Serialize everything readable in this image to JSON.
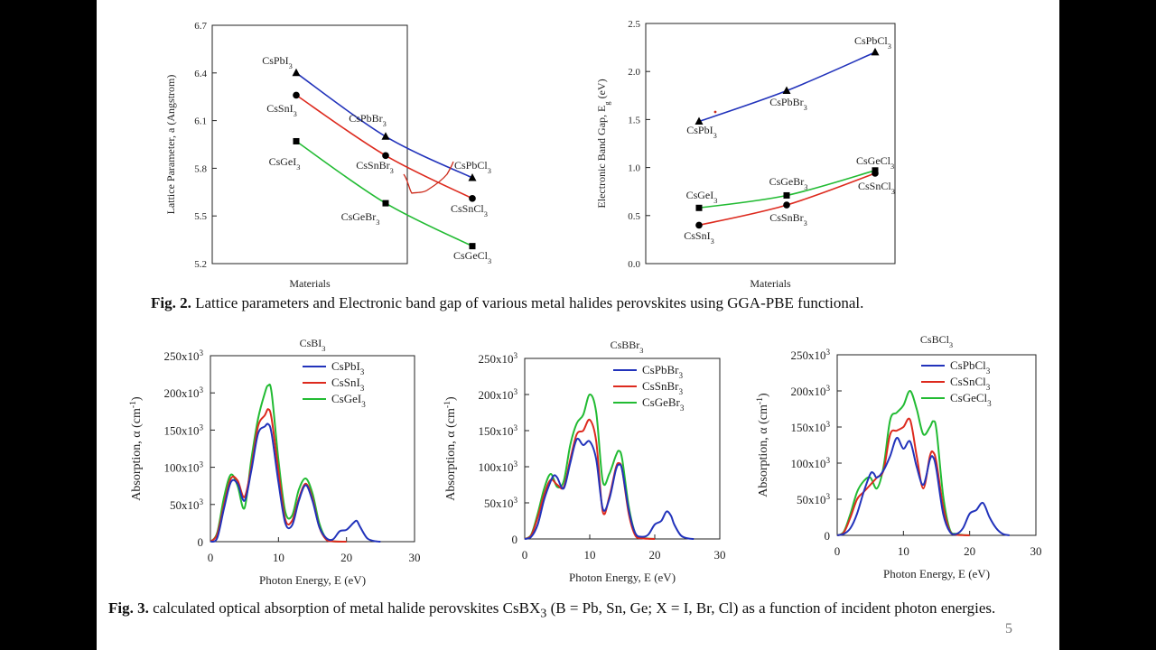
{
  "fig2_caption": {
    "label": "Fig. 2.",
    "text": " Lattice parameters and Electronic band gap of various metal halides perovskites using GGA-PBE functional."
  },
  "fig3_caption": {
    "label": "Fig. 3.",
    "text_before": " calculated optical absorption of metal halide perovskites CsBX",
    "sub": "3",
    "text_after": " (B = Pb, Sn, Ge; X = I, Br, Cl) as a function of incident photon energies."
  },
  "page_number": "5",
  "colors": {
    "pb": "#2233bb",
    "sn": "#dd2a1e",
    "ge": "#22bb33",
    "axis": "#222222"
  },
  "chart_data": [
    {
      "id": "lattice",
      "type": "line",
      "xlabel": "Materials",
      "ylabel": "Lattice Parameter, a (Angstrom)",
      "ylim": [
        5.2,
        6.7
      ],
      "yticks": [
        "5.2",
        "5.5",
        "5.8",
        "6.1",
        "6.4",
        "6.7"
      ],
      "series": [
        {
          "key": "pb",
          "marker": "triangle",
          "points": [
            {
              "x": 1,
              "y": 6.4,
              "label": "CsPbI",
              "sub": "3"
            },
            {
              "x": 2,
              "y": 6.0,
              "label": "CsPbBr",
              "sub": "3"
            },
            {
              "x": 3,
              "y": 5.74,
              "label": "CsPbCl",
              "sub": "3"
            }
          ]
        },
        {
          "key": "sn",
          "marker": "circle",
          "points": [
            {
              "x": 1,
              "y": 6.26,
              "label": "CsSnI",
              "sub": "3"
            },
            {
              "x": 2,
              "y": 5.88,
              "label": "CsSnBr",
              "sub": "3"
            },
            {
              "x": 3,
              "y": 5.61,
              "label": "CsSnCl",
              "sub": "3"
            }
          ]
        },
        {
          "key": "ge",
          "marker": "square",
          "points": [
            {
              "x": 1,
              "y": 5.97,
              "label": "CsGeI",
              "sub": "3"
            },
            {
              "x": 2,
              "y": 5.58,
              "label": "CsGeBr",
              "sub": "3"
            },
            {
              "x": 3,
              "y": 5.31,
              "label": "CsGeCl",
              "sub": "3"
            }
          ]
        }
      ]
    },
    {
      "id": "bandgap",
      "type": "line",
      "xlabel": "Materials",
      "ylabel": "Electronic Band Gap, E",
      "ylabel_sub": "g",
      "ylabel_unit": " (eV)",
      "ylim": [
        0,
        2.5
      ],
      "yticks": [
        "0.0",
        "0.5",
        "1.0",
        "1.5",
        "2.0",
        "2.5"
      ],
      "series": [
        {
          "key": "pb",
          "marker": "triangle",
          "points": [
            {
              "x": 1,
              "y": 1.48,
              "label": "CsPbI",
              "sub": "3"
            },
            {
              "x": 2,
              "y": 1.8,
              "label": "CsPbBr",
              "sub": "3"
            },
            {
              "x": 3,
              "y": 2.2,
              "label": "CsPbCl",
              "sub": "3"
            }
          ]
        },
        {
          "key": "ge",
          "marker": "square",
          "points": [
            {
              "x": 1,
              "y": 0.58,
              "label": "CsGeI",
              "sub": "3"
            },
            {
              "x": 2,
              "y": 0.71,
              "label": "CsGeBr",
              "sub": "3"
            },
            {
              "x": 3,
              "y": 0.97,
              "label": "CsGeCl",
              "sub": "3"
            }
          ]
        },
        {
          "key": "sn",
          "marker": "circle",
          "points": [
            {
              "x": 1,
              "y": 0.4,
              "label": "CsSnI",
              "sub": "3"
            },
            {
              "x": 2,
              "y": 0.61,
              "label": "CsSnBr",
              "sub": "3"
            },
            {
              "x": 3,
              "y": 0.94,
              "label": "CsSnCl",
              "sub": "3"
            }
          ]
        }
      ]
    },
    {
      "id": "abs_i",
      "type": "line",
      "title": "CsBI",
      "title_sub": "3",
      "xlabel": "Photon Energy, E (eV)",
      "ylabel": "Absorption, α (cm",
      "ylabel_sup": "-1",
      "ylabel_end": ")",
      "xlim": [
        0,
        30
      ],
      "ylim": [
        0,
        250000
      ],
      "xticks": [
        "0",
        "10",
        "20",
        "30"
      ],
      "yticks": [
        "0",
        "50x10",
        "100x10",
        "150x10",
        "200x10",
        "250x10"
      ],
      "ytick_sup": "3",
      "series": [
        {
          "key": "pb",
          "name": "CsPbI",
          "sub": "3",
          "x": [
            0,
            1,
            2,
            3,
            4,
            5,
            6,
            7,
            8,
            8.5,
            9,
            10,
            11,
            12,
            13,
            14,
            15,
            16,
            17,
            18,
            19,
            20,
            21,
            21.5,
            22,
            23,
            24,
            25
          ],
          "y": [
            0,
            5000,
            45000,
            80000,
            78000,
            55000,
            95000,
            145000,
            155000,
            158000,
            145000,
            80000,
            25000,
            22000,
            55000,
            76000,
            55000,
            20000,
            5000,
            3000,
            14000,
            16000,
            25000,
            28000,
            20000,
            5000,
            1000,
            0
          ]
        },
        {
          "key": "sn",
          "name": "CsSnI",
          "sub": "3",
          "x": [
            0,
            1,
            2,
            3,
            4,
            5,
            6,
            7,
            8,
            8.5,
            9,
            10,
            11,
            12,
            13,
            14,
            15,
            16,
            17,
            18,
            20
          ],
          "y": [
            0,
            10000,
            50000,
            85000,
            82000,
            60000,
            100000,
            155000,
            170000,
            178000,
            165000,
            95000,
            30000,
            28000,
            58000,
            78000,
            58000,
            20000,
            3000,
            500,
            0
          ]
        },
        {
          "key": "ge",
          "name": "CsGeI",
          "sub": "3",
          "x": [
            0,
            1,
            2,
            3,
            4,
            5,
            6,
            7,
            8,
            8.5,
            9,
            10,
            11,
            12,
            13,
            14,
            15,
            16,
            17,
            18,
            20
          ],
          "y": [
            0,
            12000,
            60000,
            90000,
            75000,
            45000,
            110000,
            165000,
            200000,
            210000,
            200000,
            110000,
            40000,
            35000,
            70000,
            85000,
            65000,
            25000,
            4000,
            500,
            0
          ]
        }
      ]
    },
    {
      "id": "abs_br",
      "type": "line",
      "title": "CsBBr",
      "title_sub": "3",
      "xlabel": "Photon Energy, E (eV)",
      "ylabel": "Absorption, α (cm",
      "ylabel_sup": "-1",
      "ylabel_end": ")",
      "xlim": [
        0,
        30
      ],
      "ylim": [
        0,
        250000
      ],
      "xticks": [
        "0",
        "10",
        "20",
        "30"
      ],
      "yticks": [
        "0",
        "50x10",
        "100x10",
        "150x10",
        "200x10",
        "250x10"
      ],
      "ytick_sup": "3",
      "series": [
        {
          "key": "pb",
          "name": "CsPbBr",
          "sub": "3",
          "x": [
            0,
            1,
            2,
            3,
            4,
            4.5,
            5,
            6,
            7,
            8,
            9,
            10,
            11,
            12,
            13,
            14,
            14.5,
            15,
            16,
            17,
            18,
            19,
            20,
            21,
            21.8,
            22.5,
            23,
            24,
            25,
            26
          ],
          "y": [
            0,
            3000,
            20000,
            55000,
            80000,
            88000,
            85000,
            70000,
            105000,
            138000,
            130000,
            135000,
            110000,
            42000,
            55000,
            95000,
            103000,
            95000,
            40000,
            8000,
            3000,
            6000,
            20000,
            25000,
            38000,
            32000,
            20000,
            5000,
            1000,
            0
          ]
        },
        {
          "key": "sn",
          "name": "CsSnBr",
          "sub": "3",
          "x": [
            0,
            1,
            2,
            3,
            4,
            5,
            6,
            7,
            8,
            9,
            10,
            11,
            12,
            13,
            14,
            14.5,
            15,
            16,
            17,
            18,
            19,
            20
          ],
          "y": [
            0,
            5000,
            30000,
            62000,
            82000,
            75000,
            72000,
            110000,
            145000,
            150000,
            165000,
            135000,
            38000,
            58000,
            98000,
            105000,
            95000,
            35000,
            5000,
            1000,
            300,
            0
          ]
        },
        {
          "key": "ge",
          "name": "CsGeBr",
          "sub": "3",
          "x": [
            0,
            1,
            2,
            3,
            4,
            5,
            6,
            7,
            8,
            9,
            10,
            11,
            12,
            13,
            14,
            14.5,
            15,
            16,
            17,
            18,
            19,
            20
          ],
          "y": [
            0,
            6000,
            35000,
            70000,
            90000,
            72000,
            80000,
            130000,
            160000,
            172000,
            200000,
            175000,
            80000,
            90000,
            115000,
            122000,
            110000,
            45000,
            8000,
            2000,
            500,
            0
          ]
        }
      ]
    },
    {
      "id": "abs_cl",
      "type": "line",
      "title": "CsBCl",
      "title_sub": "3",
      "xlabel": "Photon Energy, E (eV)",
      "ylabel": "Absorption, α (cm",
      "ylabel_sup": "-1",
      "ylabel_end": ")",
      "xlim": [
        0,
        30
      ],
      "ylim": [
        0,
        250000
      ],
      "xticks": [
        "0",
        "10",
        "20",
        "30"
      ],
      "yticks": [
        "0",
        "50x10",
        "100x10",
        "150x10",
        "200x10",
        "250x10"
      ],
      "ytick_sup": "3",
      "series": [
        {
          "key": "pb",
          "name": "CsPbCl",
          "sub": "3",
          "x": [
            0,
            1,
            2,
            3,
            4,
            5,
            5.5,
            6,
            7,
            8,
            9,
            10,
            11,
            12,
            13,
            14,
            14.5,
            15,
            16,
            17,
            18,
            19,
            20,
            21,
            22,
            23,
            24,
            25,
            26
          ],
          "y": [
            0,
            2000,
            10000,
            30000,
            60000,
            85000,
            86000,
            80000,
            90000,
            110000,
            135000,
            120000,
            130000,
            95000,
            70000,
            105000,
            108000,
            90000,
            30000,
            5000,
            2000,
            10000,
            30000,
            35000,
            45000,
            25000,
            10000,
            2000,
            0
          ]
        },
        {
          "key": "sn",
          "name": "CsSnCl",
          "sub": "3",
          "x": [
            0,
            1,
            2,
            3,
            4,
            5,
            6,
            7,
            8,
            9,
            10,
            11,
            12,
            13,
            14,
            14.5,
            15,
            16,
            17,
            18,
            19,
            20
          ],
          "y": [
            0,
            4000,
            25000,
            50000,
            60000,
            70000,
            80000,
            90000,
            140000,
            145000,
            150000,
            160000,
            110000,
            65000,
            110000,
            115000,
            100000,
            40000,
            6000,
            1000,
            300,
            0
          ]
        },
        {
          "key": "ge",
          "name": "CsGeCl",
          "sub": "3",
          "x": [
            0,
            1,
            2,
            3,
            4,
            5,
            6,
            7,
            8,
            9,
            10,
            11,
            12,
            13,
            14,
            14.5,
            15,
            16,
            17,
            18,
            19,
            20
          ],
          "y": [
            0,
            5000,
            30000,
            60000,
            75000,
            80000,
            65000,
            95000,
            160000,
            170000,
            180000,
            200000,
            175000,
            140000,
            150000,
            158000,
            145000,
            55000,
            8000,
            2000,
            500,
            0
          ]
        }
      ]
    }
  ]
}
